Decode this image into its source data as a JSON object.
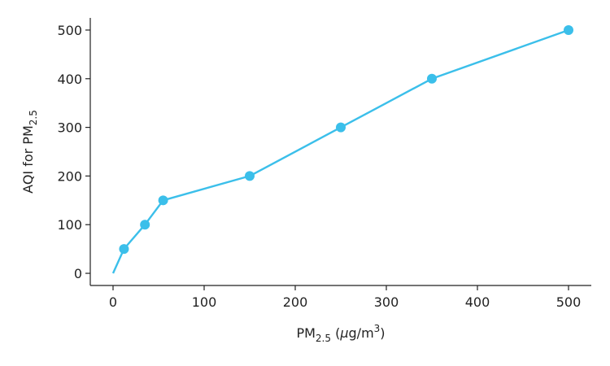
{
  "chart_data": {
    "type": "line",
    "xlabel": {
      "main": "PM",
      "sub": "2.5",
      "unit_prefix": " (",
      "unit_mu": "μ",
      "unit_rest": "g/m",
      "unit_sup": "3",
      "unit_suffix": ")"
    },
    "ylabel": {
      "main": "AQI for PM",
      "sub": "2.5"
    },
    "xlim": [
      -25,
      525
    ],
    "ylim": [
      -25,
      525
    ],
    "x_ticks": [
      0,
      100,
      200,
      300,
      400,
      500
    ],
    "y_ticks": [
      0,
      100,
      200,
      300,
      400,
      500
    ],
    "grid": false,
    "color": "#3bbfea",
    "series": [
      {
        "x": [
          0,
          12,
          35,
          55,
          150,
          250,
          350,
          500
        ],
        "y": [
          0,
          50,
          100,
          150,
          200,
          300,
          400,
          500
        ],
        "markers": [
          false,
          true,
          true,
          true,
          true,
          true,
          true,
          true
        ]
      }
    ]
  }
}
